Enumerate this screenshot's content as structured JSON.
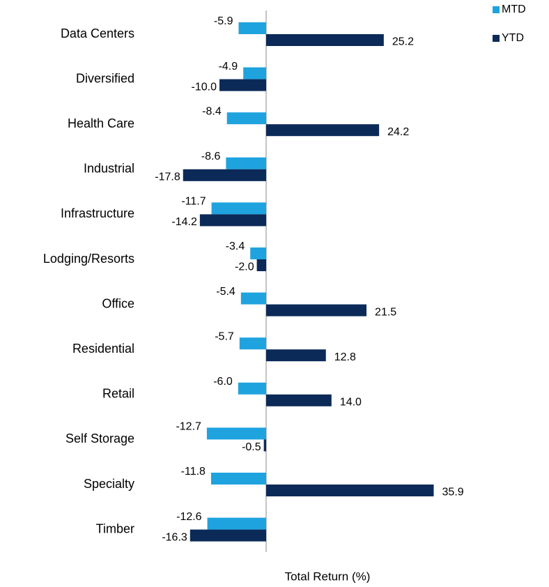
{
  "chart_data": {
    "type": "bar",
    "orientation": "horizontal",
    "categories": [
      "Data Centers",
      "Diversified",
      "Health Care",
      "Industrial",
      "Infrastructure",
      "Lodging/Resorts",
      "Office",
      "Residential",
      "Retail",
      "Self Storage",
      "Specialty",
      "Timber"
    ],
    "series": [
      {
        "name": "MTD",
        "color": "#1fa3df",
        "values": [
          -5.9,
          -4.9,
          -8.4,
          -8.6,
          -11.7,
          -3.4,
          -5.4,
          -5.7,
          -6.0,
          -12.7,
          -11.8,
          -12.6
        ]
      },
      {
        "name": "YTD",
        "color": "#0b2a58",
        "values": [
          25.2,
          -10.0,
          24.2,
          -17.8,
          -14.2,
          -2.0,
          21.5,
          12.8,
          14.0,
          -0.5,
          35.9,
          -16.3
        ]
      }
    ],
    "value_labels": [
      [
        "-5.9",
        "-4.9",
        "-8.4",
        "-8.6",
        "-11.7",
        "-3.4",
        "-5.4",
        "-5.7",
        "-6.0",
        "-12.7",
        "-11.8",
        "-12.6"
      ],
      [
        "25.2",
        "-10.0",
        "24.2",
        "-17.8",
        "-14.2",
        "-2.0",
        "21.5",
        "12.8",
        "14.0",
        "-0.5",
        "35.9",
        "-16.3"
      ]
    ],
    "xlabel": "Total Return (%)",
    "xlim": [
      -20,
      40
    ],
    "legend": "top-right"
  }
}
